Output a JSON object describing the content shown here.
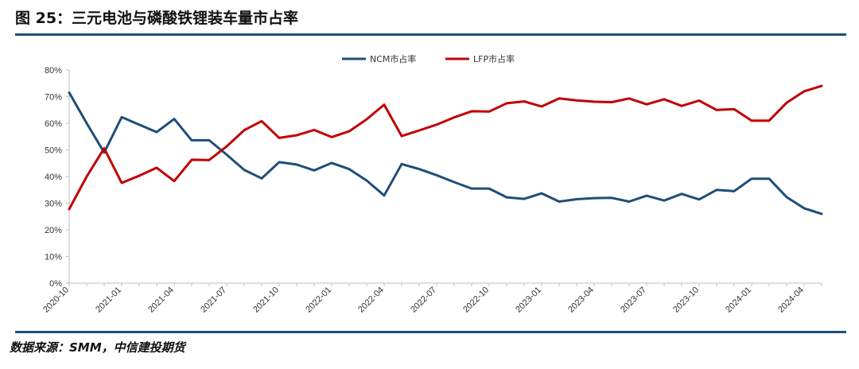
{
  "figure": {
    "title": "图 25：三元电池与磷酸铁锂装车量市占率",
    "source": "数据来源：SMM，中信建投期货"
  },
  "colors": {
    "ncm": "#1f4e79",
    "lfp": "#c00000",
    "rule": "#1d4f7c",
    "axis": "#bfbfbf"
  },
  "chart_data": {
    "type": "line",
    "ylim": [
      0,
      80
    ],
    "y_ticks": [
      "0%",
      "10%",
      "20%",
      "30%",
      "40%",
      "50%",
      "60%",
      "70%",
      "80%"
    ],
    "x_ticks": [
      "2020-10",
      "2021-01",
      "2021-04",
      "2021-07",
      "2021-10",
      "2022-01",
      "2022-04",
      "2022-07",
      "2022-10",
      "2023-01",
      "2023-04",
      "2023-07",
      "2023-10",
      "2024-01",
      "2024-04"
    ],
    "x": [
      "2020-10",
      "2020-11",
      "2020-12",
      "2021-01",
      "2021-02",
      "2021-03",
      "2021-04",
      "2021-05",
      "2021-06",
      "2021-07",
      "2021-08",
      "2021-09",
      "2021-10",
      "2021-11",
      "2021-12",
      "2022-01",
      "2022-02",
      "2022-03",
      "2022-04",
      "2022-05",
      "2022-06",
      "2022-07",
      "2022-08",
      "2022-09",
      "2022-10",
      "2022-11",
      "2022-12",
      "2023-01",
      "2023-02",
      "2023-03",
      "2023-04",
      "2023-05",
      "2023-06",
      "2023-07",
      "2023-08",
      "2023-09",
      "2023-10",
      "2023-11",
      "2023-12",
      "2024-01",
      "2024-02",
      "2024-03",
      "2024-04",
      "2024-05"
    ],
    "legend_position": "top-center",
    "grid": false,
    "series": [
      {
        "name": "NCM市占率",
        "color": "#1f4e79",
        "values": [
          71.5,
          60.0,
          49.0,
          62.3,
          59.5,
          56.7,
          61.6,
          53.6,
          53.6,
          48.2,
          42.5,
          39.3,
          45.4,
          44.5,
          42.3,
          45.1,
          42.8,
          38.5,
          32.9,
          44.7,
          42.8,
          40.5,
          37.9,
          35.5,
          35.5,
          32.2,
          31.6,
          33.7,
          30.6,
          31.5,
          31.9,
          32.0,
          30.6,
          32.8,
          31.0,
          33.5,
          31.4,
          35.0,
          34.5,
          39.2,
          39.2,
          32.3,
          28.1,
          26.0
        ]
      },
      {
        "name": "LFP市占率",
        "color": "#c00000",
        "values": [
          27.8,
          40.0,
          50.6,
          37.6,
          40.3,
          43.3,
          38.3,
          46.3,
          46.2,
          51.3,
          57.4,
          60.8,
          54.5,
          55.5,
          57.5,
          54.8,
          57.0,
          61.5,
          67.0,
          55.2,
          57.3,
          59.5,
          62.2,
          64.5,
          64.4,
          67.5,
          68.2,
          66.3,
          69.3,
          68.6,
          68.1,
          67.9,
          69.3,
          67.1,
          69.0,
          66.5,
          68.5,
          65.0,
          65.3,
          61.0,
          61.0,
          67.7,
          72.0,
          74.0
        ]
      }
    ]
  }
}
